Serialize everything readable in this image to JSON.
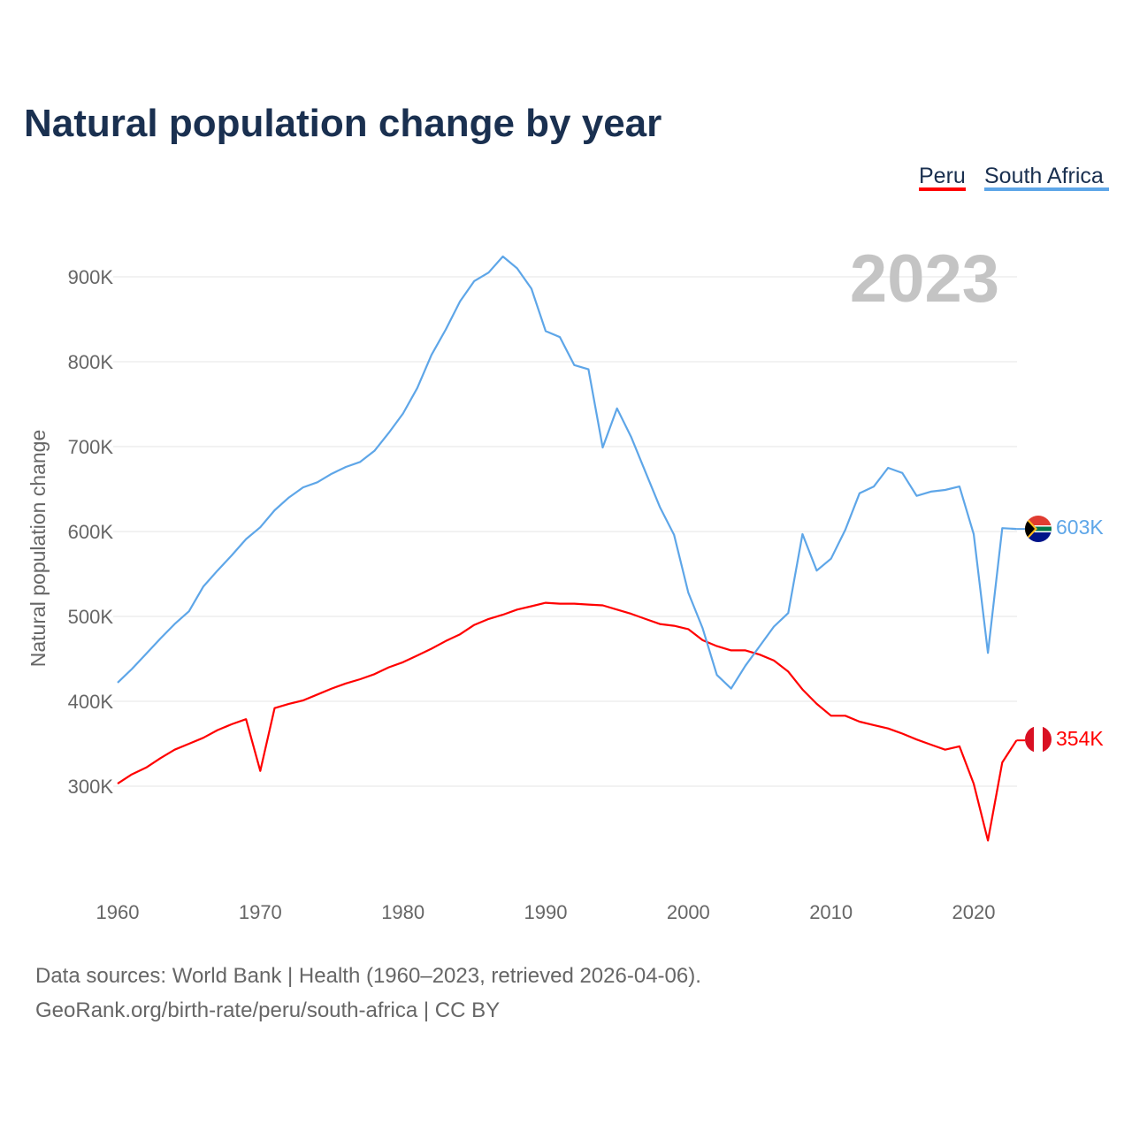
{
  "chart_data": {
    "type": "line",
    "title": "Natural population change by year",
    "ylabel": "Natural population change",
    "xlabel": "",
    "year_label": "2023",
    "ylim": [
      200000,
      950000
    ],
    "xlim": [
      1960,
      2023
    ],
    "grid": true,
    "legend_position": "top-right",
    "y_ticks": [
      300000,
      400000,
      500000,
      600000,
      700000,
      800000,
      900000
    ],
    "y_tick_labels": [
      "300K",
      "400K",
      "500K",
      "600K",
      "700K",
      "800K",
      "900K"
    ],
    "x_ticks": [
      1960,
      1970,
      1980,
      1990,
      2000,
      2010,
      2020
    ],
    "x_tick_labels": [
      "1960",
      "1970",
      "1980",
      "1990",
      "2000",
      "2010",
      "2020"
    ],
    "x": [
      1960,
      1961,
      1962,
      1963,
      1964,
      1965,
      1966,
      1967,
      1968,
      1969,
      1970,
      1971,
      1972,
      1973,
      1974,
      1975,
      1976,
      1977,
      1978,
      1979,
      1980,
      1981,
      1982,
      1983,
      1984,
      1985,
      1986,
      1987,
      1988,
      1989,
      1990,
      1991,
      1992,
      1993,
      1994,
      1995,
      1996,
      1997,
      1998,
      1999,
      2000,
      2001,
      2002,
      2003,
      2004,
      2005,
      2006,
      2007,
      2008,
      2009,
      2010,
      2011,
      2012,
      2013,
      2014,
      2015,
      2016,
      2017,
      2018,
      2019,
      2020,
      2021,
      2022,
      2023
    ],
    "series": [
      {
        "name": "Peru",
        "color": "#ff0000",
        "end_label": "354K",
        "values": [
          303000,
          314000,
          322000,
          333000,
          343000,
          350000,
          357000,
          366000,
          373000,
          379000,
          318000,
          392000,
          397000,
          401000,
          408000,
          415000,
          421000,
          426000,
          432000,
          440000,
          446000,
          454000,
          462000,
          471000,
          479000,
          490000,
          497000,
          502000,
          508000,
          512000,
          516000,
          515000,
          515000,
          514000,
          513000,
          508000,
          503000,
          497000,
          491000,
          489000,
          485000,
          472000,
          465000,
          460000,
          460000,
          455000,
          448000,
          435000,
          414000,
          397000,
          383000,
          383000,
          376000,
          372000,
          368000,
          362000,
          355000,
          349000,
          343000,
          347000,
          303000,
          236000,
          328000,
          354000
        ]
      },
      {
        "name": "South Africa",
        "color": "#5ea6e8",
        "end_label": "603K",
        "values": [
          422000,
          438000,
          456000,
          474000,
          491000,
          506000,
          535000,
          554000,
          572000,
          591000,
          605000,
          625000,
          640000,
          652000,
          658000,
          668000,
          676000,
          682000,
          695000,
          716000,
          739000,
          769000,
          808000,
          838000,
          871000,
          895000,
          905000,
          924000,
          910000,
          886000,
          836000,
          829000,
          796000,
          791000,
          699000,
          745000,
          711000,
          670000,
          629000,
          596000,
          528000,
          486000,
          431000,
          415000,
          442000,
          465000,
          488000,
          504000,
          597000,
          554000,
          568000,
          602000,
          645000,
          653000,
          675000,
          669000,
          642000,
          647000,
          649000,
          653000,
          597000,
          457000,
          604000,
          603000
        ]
      }
    ]
  },
  "footer": {
    "line1": "Data sources: World Bank | Health (1960–2023, retrieved 2026-04-06).",
    "line2": "GeoRank.org/birth-rate/peru/south-africa | CC BY"
  }
}
